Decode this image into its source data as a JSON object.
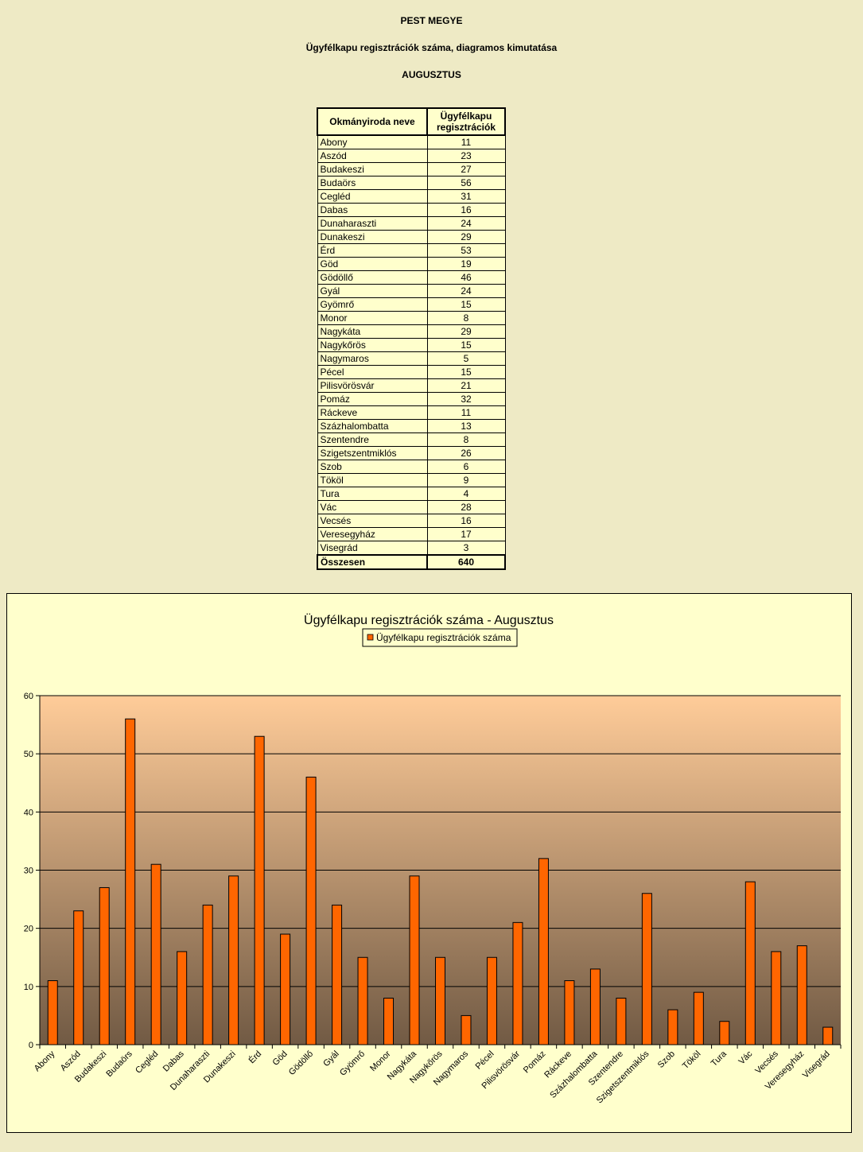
{
  "header": {
    "line1": "PEST MEGYE",
    "line2": "Ügyfélkapu regisztrációk száma, diagramos kimutatása",
    "line3": "AUGUSZTUS"
  },
  "table": {
    "col1_header": "Okmányiroda neve",
    "col2_header_line1": "Ügyfélkapu",
    "col2_header_line2": "regisztrációk",
    "rows": [
      {
        "name": "Abony",
        "value": "11"
      },
      {
        "name": "Aszód",
        "value": "23"
      },
      {
        "name": "Budakeszi",
        "value": "27"
      },
      {
        "name": "Budaörs",
        "value": "56"
      },
      {
        "name": "Cegléd",
        "value": "31"
      },
      {
        "name": "Dabas",
        "value": "16"
      },
      {
        "name": "Dunaharaszti",
        "value": "24"
      },
      {
        "name": "Dunakeszi",
        "value": "29"
      },
      {
        "name": "Érd",
        "value": "53"
      },
      {
        "name": "Göd",
        "value": "19"
      },
      {
        "name": "Gödöllő",
        "value": "46"
      },
      {
        "name": "Gyál",
        "value": "24"
      },
      {
        "name": "Gyömrő",
        "value": "15"
      },
      {
        "name": "Monor",
        "value": "8"
      },
      {
        "name": "Nagykáta",
        "value": "29"
      },
      {
        "name": "Nagykőrös",
        "value": "15"
      },
      {
        "name": "Nagymaros",
        "value": "5"
      },
      {
        "name": "Pécel",
        "value": "15"
      },
      {
        "name": "Pilisvörösvár",
        "value": "21"
      },
      {
        "name": "Pomáz",
        "value": "32"
      },
      {
        "name": "Ráckeve",
        "value": "11"
      },
      {
        "name": "Százhalombatta",
        "value": "13"
      },
      {
        "name": "Szentendre",
        "value": "8"
      },
      {
        "name": "Szigetszentmiklós",
        "value": "26"
      },
      {
        "name": "Szob",
        "value": "6"
      },
      {
        "name": "Tököl",
        "value": "9"
      },
      {
        "name": "Tura",
        "value": "4"
      },
      {
        "name": "Vác",
        "value": "28"
      },
      {
        "name": "Vecsés",
        "value": "16"
      },
      {
        "name": "Veresegyház",
        "value": "17"
      },
      {
        "name": "Visegrád",
        "value": "3"
      }
    ],
    "total_label": "Összesen",
    "total_value": "640"
  },
  "chart_data": {
    "type": "bar",
    "title": "Ügyfélkapu regisztrációk száma - Augusztus",
    "categories": [
      "Abony",
      "Aszód",
      "Budakeszi",
      "Budaörs",
      "Cegléd",
      "Dabas",
      "Dunaharaszti",
      "Dunakeszi",
      "Érd",
      "Göd",
      "Gödöllő",
      "Gyál",
      "Gyömrő",
      "Monor",
      "Nagykáta",
      "Nagykőrös",
      "Nagymaros",
      "Pécel",
      "Pilisvörösvár",
      "Pomáz",
      "Ráckeve",
      "Százhalombatta",
      "Szentendre",
      "Szigetszentmiklós",
      "Szob",
      "Tököl",
      "Tura",
      "Vác",
      "Vecsés",
      "Veresegyház",
      "Visegrád"
    ],
    "series": [
      {
        "name": "Ügyfélkapu regisztrációk száma",
        "values": [
          11,
          23,
          27,
          56,
          31,
          16,
          24,
          29,
          53,
          19,
          46,
          24,
          15,
          8,
          29,
          15,
          5,
          15,
          21,
          32,
          11,
          13,
          8,
          26,
          6,
          9,
          4,
          28,
          16,
          17,
          3
        ]
      }
    ],
    "xlabel": "",
    "ylabel": "",
    "ylim": [
      0,
      60
    ],
    "yticks": [
      0,
      10,
      20,
      30,
      40,
      50,
      60
    ],
    "grid": true,
    "legend": "top-center",
    "colors": {
      "bar": "#ff6600",
      "bar_edge": "#000000",
      "plot_top": "#ffcc99",
      "plot_bottom": "#715a44",
      "chart_bg": "#ffffcc",
      "page_bg": "#eeeac5"
    }
  }
}
